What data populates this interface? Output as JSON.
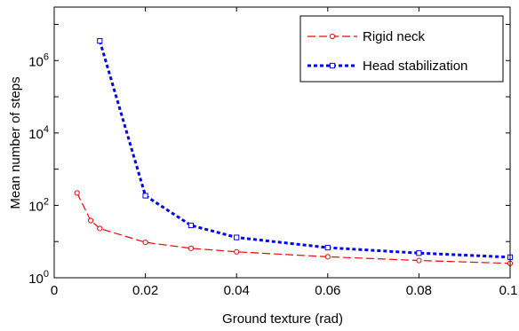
{
  "chart_data": {
    "type": "line",
    "xlabel": "Ground texture (rad)",
    "ylabel": "Mean number of steps",
    "xlim": [
      0,
      0.1
    ],
    "ylim": [
      1,
      30000000
    ],
    "y_scale": "log",
    "x_ticks": [
      0,
      0.02,
      0.04,
      0.06,
      0.08,
      0.1
    ],
    "x_tick_labels": [
      "0",
      "0.02",
      "0.04",
      "0.06",
      "0.08",
      "0.1"
    ],
    "y_ticks": [
      {
        "value": 1,
        "base": "10",
        "exp": "0"
      },
      {
        "value": 100,
        "base": "10",
        "exp": "2"
      },
      {
        "value": 10000,
        "base": "10",
        "exp": "4"
      },
      {
        "value": 1000000,
        "base": "10",
        "exp": "6"
      }
    ],
    "grid": false,
    "legend_position": "top-right",
    "series": [
      {
        "name": "Rigid neck",
        "color": "#ff0000",
        "line_style": "dashed",
        "marker": "circle",
        "x": [
          0.005,
          0.008,
          0.01,
          0.02,
          0.03,
          0.04,
          0.06,
          0.08,
          0.1
        ],
        "y": [
          220,
          38,
          23,
          9.5,
          6.5,
          5.2,
          3.8,
          3.0,
          2.5
        ]
      },
      {
        "name": "Head stabilization",
        "color": "#0000ff",
        "line_style": "dotted",
        "marker": "square",
        "x": [
          0.01,
          0.02,
          0.03,
          0.04,
          0.06,
          0.08,
          0.1
        ],
        "y": [
          3500000,
          185,
          28,
          13,
          6.8,
          4.8,
          3.7
        ]
      }
    ]
  }
}
